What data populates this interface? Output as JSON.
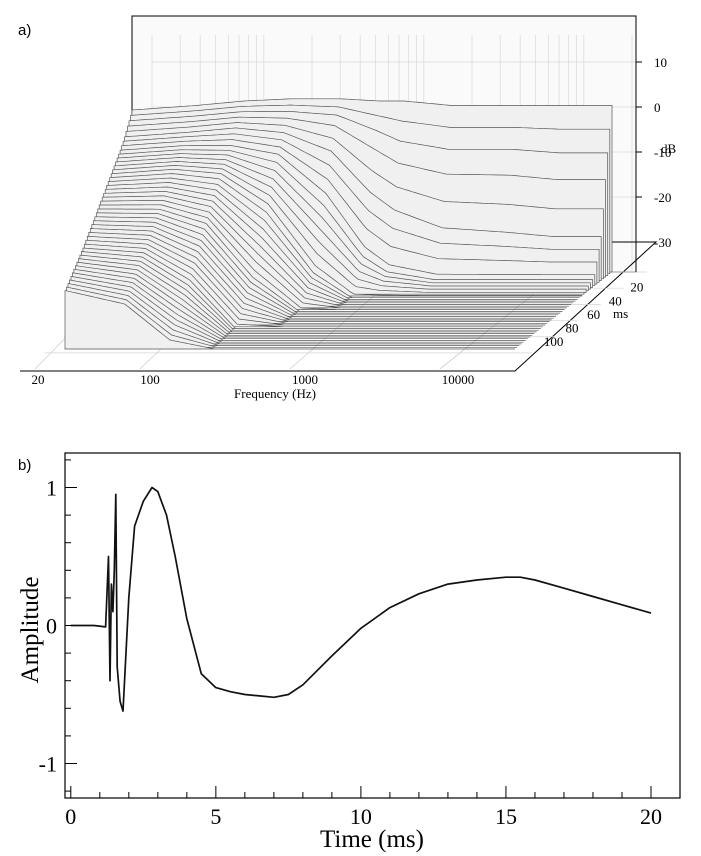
{
  "chart_data": [
    {
      "panel_label": "a)",
      "type": "waterfall",
      "xlabel": "Frequency (Hz)",
      "x_scale": "log",
      "xlim": [
        20,
        20000
      ],
      "x_ticks": [
        "20",
        "100",
        "1000",
        "10000"
      ],
      "z_unit": "dB",
      "zlim": [
        -38,
        12
      ],
      "z_ticks": [
        "10",
        "0",
        "-10",
        "-20",
        "-30"
      ],
      "t_unit": "ms",
      "t_ticks": [
        "20",
        "40",
        "60",
        "80",
        "100"
      ],
      "slices": [
        {
          "t": 0,
          "f": [
            20,
            50,
            100,
            200,
            400,
            700,
            1000,
            2000,
            5000,
            10000,
            20000
          ],
          "db": [
            -2,
            -1,
            0,
            0.5,
            0.5,
            0,
            0,
            -1,
            -1,
            -1,
            -1
          ]
        },
        {
          "t": 6,
          "f": [
            20,
            50,
            100,
            200,
            400,
            700,
            1000,
            2000,
            5000,
            10000,
            20000
          ],
          "db": [
            -4,
            -3,
            -2,
            -2,
            -3,
            -7,
            -10,
            -12,
            -12,
            -13,
            -13
          ]
        },
        {
          "t": 12,
          "f": [
            20,
            50,
            100,
            200,
            400,
            700,
            1000,
            2000,
            5000,
            10000,
            20000
          ],
          "db": [
            -6,
            -5,
            -4,
            -5,
            -9,
            -18,
            -22,
            -26,
            -27,
            -28,
            -28
          ]
        },
        {
          "t": 20,
          "f": [
            20,
            50,
            100,
            200,
            400,
            700,
            1000,
            2000,
            5000,
            10000,
            20000
          ],
          "db": [
            -8,
            -7,
            -7,
            -9,
            -18,
            -30,
            -34,
            -36,
            -36,
            -36,
            -36
          ]
        },
        {
          "t": 35,
          "f": [
            20,
            50,
            100,
            200,
            400,
            700,
            1000,
            2000,
            5000,
            10000,
            20000
          ],
          "db": [
            -11,
            -10,
            -11,
            -18,
            -32,
            -38,
            -38,
            -38,
            -38,
            -38,
            -38
          ]
        },
        {
          "t": 55,
          "f": [
            20,
            50,
            100,
            200,
            400,
            700,
            1000,
            2000,
            5000,
            10000,
            20000
          ],
          "db": [
            -15,
            -15,
            -18,
            -30,
            -38,
            -38,
            -38,
            -38,
            -38,
            -38,
            -38
          ]
        },
        {
          "t": 80,
          "f": [
            20,
            50,
            100,
            200,
            400,
            700,
            1000,
            2000,
            5000,
            10000,
            20000
          ],
          "db": [
            -20,
            -21,
            -27,
            -38,
            -38,
            -38,
            -38,
            -38,
            -38,
            -38,
            -38
          ]
        },
        {
          "t": 110,
          "f": [
            20,
            50,
            100,
            200,
            400,
            700,
            1000,
            2000,
            5000,
            10000,
            20000
          ],
          "db": [
            -25,
            -28,
            -36,
            -38,
            -38,
            -38,
            -38,
            -38,
            -38,
            -38,
            -38
          ]
        }
      ]
    },
    {
      "panel_label": "b)",
      "type": "line",
      "xlabel": "Time (ms)",
      "ylabel": "Amplitude",
      "xlim": [
        -0.2,
        21
      ],
      "ylim": [
        -1.25,
        1.25
      ],
      "x_ticks": [
        "0",
        "5",
        "10",
        "15",
        "20"
      ],
      "y_ticks": [
        "1",
        "0",
        "-1"
      ],
      "x": [
        0,
        0.8,
        1.2,
        1.3,
        1.35,
        1.4,
        1.45,
        1.5,
        1.55,
        1.6,
        1.7,
        1.8,
        2.0,
        2.2,
        2.5,
        2.8,
        3.0,
        3.3,
        3.6,
        4.0,
        4.5,
        5.0,
        5.5,
        6.0,
        6.5,
        7.0,
        7.5,
        8.0,
        9.0,
        10.0,
        11.0,
        12.0,
        13.0,
        14.0,
        15.0,
        15.5,
        16.0,
        17.0,
        18.0,
        19.0,
        20.0
      ],
      "y": [
        0,
        0,
        -0.01,
        0.5,
        -0.4,
        0.3,
        0.1,
        0.4,
        0.95,
        -0.3,
        -0.55,
        -0.62,
        0.2,
        0.72,
        0.9,
        1.0,
        0.97,
        0.8,
        0.5,
        0.05,
        -0.35,
        -0.45,
        -0.48,
        -0.5,
        -0.51,
        -0.52,
        -0.5,
        -0.43,
        -0.22,
        -0.02,
        0.13,
        0.23,
        0.3,
        0.33,
        0.35,
        0.35,
        0.33,
        0.27,
        0.21,
        0.15,
        0.09
      ]
    }
  ]
}
